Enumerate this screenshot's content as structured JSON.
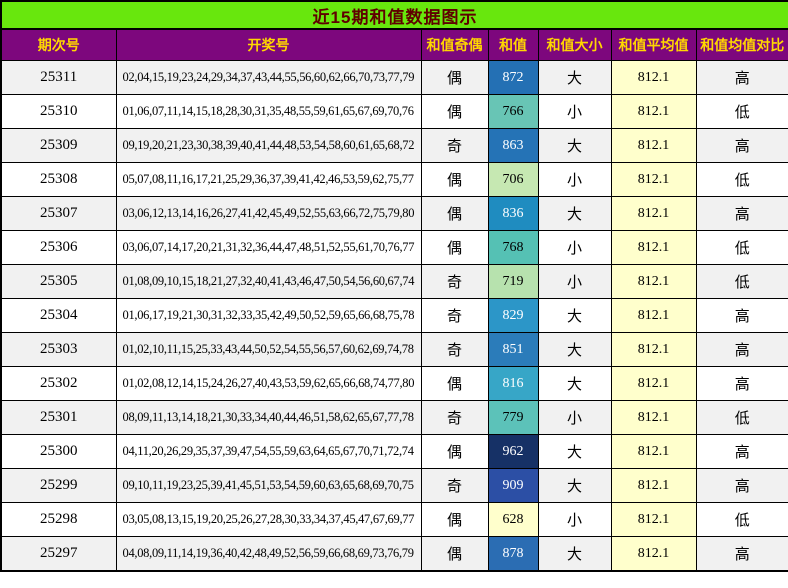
{
  "title": "近15期和值数据图示",
  "colors": {
    "title_bg": "#68E70D",
    "title_text": "#5F0000",
    "header_bg": "#7D077D",
    "header_text": "#FFD700",
    "row_stripe_bg": "#F1F1F1",
    "row_bg": "#FFFFFF",
    "average_cell_bg": "#FFFFCC",
    "border": "#000000"
  },
  "columns": [
    {
      "key": "period",
      "label": "期次号"
    },
    {
      "key": "numbers",
      "label": "开奖号"
    },
    {
      "key": "parity",
      "label": "和值奇偶"
    },
    {
      "key": "sum",
      "label": "和值"
    },
    {
      "key": "size",
      "label": "和值大小"
    },
    {
      "key": "average",
      "label": "和值平均值"
    },
    {
      "key": "compare",
      "label": "和值均值对比"
    }
  ],
  "rows": [
    {
      "period": "25311",
      "numbers": "02,04,15,19,23,24,29,34,37,43,44,55,56,60,62,66,70,73,77,79",
      "parity": "偶",
      "sum": "872",
      "sum_bg": "#2470B4",
      "sum_fg": "#FFFFFF",
      "size": "大",
      "average": "812.1",
      "compare": "高"
    },
    {
      "period": "25310",
      "numbers": "01,06,07,11,14,15,18,28,30,31,35,48,55,59,61,65,67,69,70,76",
      "parity": "偶",
      "sum": "766",
      "sum_bg": "#68C5B5",
      "sum_fg": "#000000",
      "size": "小",
      "average": "812.1",
      "compare": "低"
    },
    {
      "period": "25309",
      "numbers": "09,19,20,21,23,30,38,39,40,41,44,48,53,54,58,60,61,65,68,72",
      "parity": "奇",
      "sum": "863",
      "sum_bg": "#2573B6",
      "sum_fg": "#FFFFFF",
      "size": "大",
      "average": "812.1",
      "compare": "高"
    },
    {
      "period": "25308",
      "numbers": "05,07,08,11,16,17,21,25,29,36,37,39,41,42,46,53,59,62,75,77",
      "parity": "偶",
      "sum": "706",
      "sum_bg": "#C6E8B2",
      "sum_fg": "#000000",
      "size": "小",
      "average": "812.1",
      "compare": "低"
    },
    {
      "period": "25307",
      "numbers": "03,06,12,13,14,16,26,27,41,42,45,49,52,55,63,66,72,75,79,80",
      "parity": "偶",
      "sum": "836",
      "sum_bg": "#1F8CC0",
      "sum_fg": "#FFFFFF",
      "size": "大",
      "average": "812.1",
      "compare": "高"
    },
    {
      "period": "25306",
      "numbers": "03,06,07,14,17,20,21,31,32,36,44,47,48,51,52,55,61,70,76,77",
      "parity": "偶",
      "sum": "768",
      "sum_bg": "#55C1B4",
      "sum_fg": "#000000",
      "size": "小",
      "average": "812.1",
      "compare": "低"
    },
    {
      "period": "25305",
      "numbers": "01,08,09,10,15,18,21,27,32,40,41,43,46,47,50,54,56,60,67,74",
      "parity": "奇",
      "sum": "719",
      "sum_bg": "#B7E2AE",
      "sum_fg": "#000000",
      "size": "小",
      "average": "812.1",
      "compare": "低"
    },
    {
      "period": "25304",
      "numbers": "01,06,17,19,21,30,31,32,33,35,42,49,50,52,59,65,66,68,75,78",
      "parity": "奇",
      "sum": "829",
      "sum_bg": "#2C96C8",
      "sum_fg": "#FFFFFF",
      "size": "大",
      "average": "812.1",
      "compare": "高"
    },
    {
      "period": "25303",
      "numbers": "01,02,10,11,15,25,33,43,44,50,52,54,55,56,57,60,62,69,74,78",
      "parity": "奇",
      "sum": "851",
      "sum_bg": "#2B7CBA",
      "sum_fg": "#FFFFFF",
      "size": "大",
      "average": "812.1",
      "compare": "高"
    },
    {
      "period": "25302",
      "numbers": "01,02,08,12,14,15,24,26,27,40,43,53,59,62,65,66,68,74,77,80",
      "parity": "偶",
      "sum": "816",
      "sum_bg": "#37A6C7",
      "sum_fg": "#FFFFFF",
      "size": "大",
      "average": "812.1",
      "compare": "高"
    },
    {
      "period": "25301",
      "numbers": "08,09,11,13,14,18,21,30,33,34,40,44,46,51,58,62,65,67,77,78",
      "parity": "奇",
      "sum": "779",
      "sum_bg": "#5CC2B9",
      "sum_fg": "#000000",
      "size": "小",
      "average": "812.1",
      "compare": "低"
    },
    {
      "period": "25300",
      "numbers": "04,11,20,26,29,35,37,39,47,54,55,59,63,64,65,67,70,71,72,74",
      "parity": "偶",
      "sum": "962",
      "sum_bg": "#163166",
      "sum_fg": "#FFFFFF",
      "size": "大",
      "average": "812.1",
      "compare": "高"
    },
    {
      "period": "25299",
      "numbers": "09,10,11,19,23,25,39,41,45,51,53,54,59,60,63,65,68,69,70,75",
      "parity": "奇",
      "sum": "909",
      "sum_bg": "#2C4FA5",
      "sum_fg": "#FFFFFF",
      "size": "大",
      "average": "812.1",
      "compare": "高"
    },
    {
      "period": "25298",
      "numbers": "03,05,08,13,15,19,20,25,26,27,28,30,33,34,37,45,47,67,69,77",
      "parity": "偶",
      "sum": "628",
      "sum_bg": "#FFFFCC",
      "sum_fg": "#000000",
      "size": "小",
      "average": "812.1",
      "compare": "低"
    },
    {
      "period": "25297",
      "numbers": "04,08,09,11,14,19,36,40,42,48,49,52,56,59,66,68,69,73,76,79",
      "parity": "偶",
      "sum": "878",
      "sum_bg": "#2B6DB3",
      "sum_fg": "#FFFFFF",
      "size": "大",
      "average": "812.1",
      "compare": "高"
    }
  ],
  "chart_data": {
    "type": "table",
    "title": "近15期和值数据图示",
    "columns": [
      "期次号",
      "开奖号",
      "和值奇偶",
      "和值",
      "和值大小",
      "和值平均值",
      "和值均值对比"
    ],
    "sum_average": 812.1,
    "sum_color_scale": "yellow-green-teal-blue-navy (low 628 → high 962)",
    "rows": [
      [
        "25311",
        "02,04,15,19,23,24,29,34,37,43,44,55,56,60,62,66,70,73,77,79",
        "偶",
        872,
        "大",
        812.1,
        "高"
      ],
      [
        "25310",
        "01,06,07,11,14,15,18,28,30,31,35,48,55,59,61,65,67,69,70,76",
        "偶",
        766,
        "小",
        812.1,
        "低"
      ],
      [
        "25309",
        "09,19,20,21,23,30,38,39,40,41,44,48,53,54,58,60,61,65,68,72",
        "奇",
        863,
        "大",
        812.1,
        "高"
      ],
      [
        "25308",
        "05,07,08,11,16,17,21,25,29,36,37,39,41,42,46,53,59,62,75,77",
        "偶",
        706,
        "小",
        812.1,
        "低"
      ],
      [
        "25307",
        "03,06,12,13,14,16,26,27,41,42,45,49,52,55,63,66,72,75,79,80",
        "偶",
        836,
        "大",
        812.1,
        "高"
      ],
      [
        "25306",
        "03,06,07,14,17,20,21,31,32,36,44,47,48,51,52,55,61,70,76,77",
        "偶",
        768,
        "小",
        812.1,
        "低"
      ],
      [
        "25305",
        "01,08,09,10,15,18,21,27,32,40,41,43,46,47,50,54,56,60,67,74",
        "奇",
        719,
        "小",
        812.1,
        "低"
      ],
      [
        "25304",
        "01,06,17,19,21,30,31,32,33,35,42,49,50,52,59,65,66,68,75,78",
        "奇",
        829,
        "大",
        812.1,
        "高"
      ],
      [
        "25303",
        "01,02,10,11,15,25,33,43,44,50,52,54,55,56,57,60,62,69,74,78",
        "奇",
        851,
        "大",
        812.1,
        "高"
      ],
      [
        "25302",
        "01,02,08,12,14,15,24,26,27,40,43,53,59,62,65,66,68,74,77,80",
        "偶",
        816,
        "大",
        812.1,
        "高"
      ],
      [
        "25301",
        "08,09,11,13,14,18,21,30,33,34,40,44,46,51,58,62,65,67,77,78",
        "奇",
        779,
        "小",
        812.1,
        "低"
      ],
      [
        "25300",
        "04,11,20,26,29,35,37,39,47,54,55,59,63,64,65,67,70,71,72,74",
        "偶",
        962,
        "大",
        812.1,
        "高"
      ],
      [
        "25299",
        "09,10,11,19,23,25,39,41,45,51,53,54,59,60,63,65,68,69,70,75",
        "奇",
        909,
        "大",
        812.1,
        "高"
      ],
      [
        "25298",
        "03,05,08,13,15,19,20,25,26,27,28,30,33,34,37,45,47,67,69,77",
        "偶",
        628,
        "小",
        812.1,
        "低"
      ],
      [
        "25297",
        "04,08,09,11,14,19,36,40,42,48,49,52,56,59,66,68,69,73,76,79",
        "偶",
        878,
        "大",
        812.1,
        "高"
      ]
    ]
  }
}
